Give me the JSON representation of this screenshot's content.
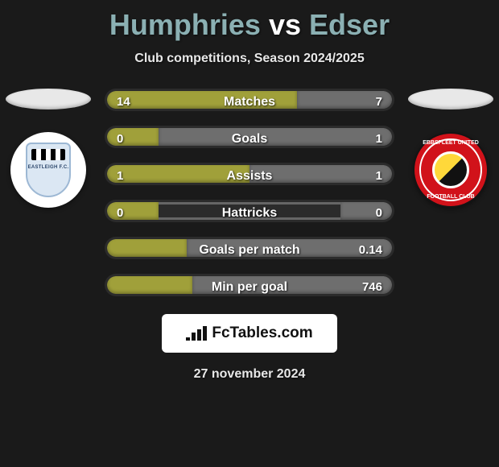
{
  "header": {
    "playerA": "Humphries",
    "vs": "vs",
    "playerB": "Edser",
    "subtitle": "Club competitions, Season 2024/2025"
  },
  "colors": {
    "teamA": "#a0a03a",
    "teamB": "#6e6e6e",
    "ellipseA": "#e8e8e8",
    "ellipseB": "#e8e8e8",
    "logoBgA": "#ffffff",
    "logoBgB": "#141414",
    "background": "#1a1a1a"
  },
  "teamA_logo": {
    "label": "EASTLEIGH F.C."
  },
  "teamB_logo": {
    "top_text": "EBBSFLEET UNITED",
    "bottom_text": "FOOTBALL CLUB"
  },
  "stats": [
    {
      "label": "Matches",
      "valueA": "14",
      "valueB": "7",
      "pctA": 66.7,
      "pctB": 33.3
    },
    {
      "label": "Goals",
      "valueA": "0",
      "valueB": "1",
      "pctA": 18,
      "pctB": 82
    },
    {
      "label": "Assists",
      "valueA": "1",
      "valueB": "1",
      "pctA": 50,
      "pctB": 50
    },
    {
      "label": "Hattricks",
      "valueA": "0",
      "valueB": "0",
      "pctA": 18,
      "pctB": 18
    },
    {
      "label": "Goals per match",
      "valueA": "",
      "valueB": "0.14",
      "pctA": 28,
      "pctB": 72
    },
    {
      "label": "Min per goal",
      "valueA": "",
      "valueB": "746",
      "pctA": 30,
      "pctB": 70
    }
  ],
  "footer": {
    "brand": "FcTables.com",
    "date": "27 november 2024"
  }
}
